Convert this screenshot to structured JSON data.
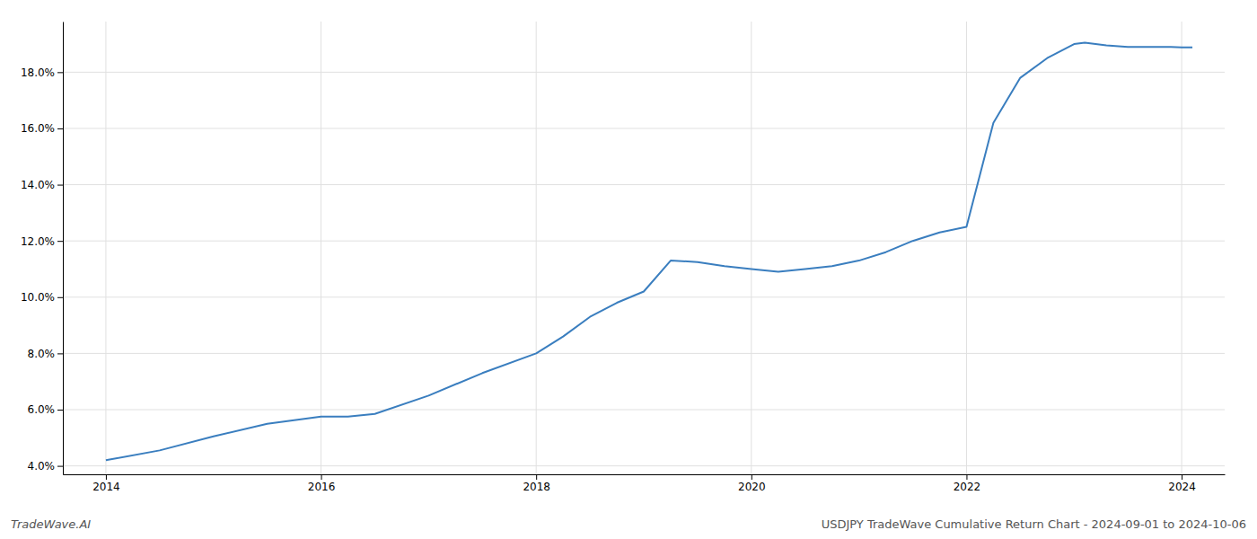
{
  "chart_data": {
    "type": "line",
    "x": [
      2014.0,
      2014.5,
      2015.0,
      2015.5,
      2016.0,
      2016.25,
      2016.5,
      2017.0,
      2017.5,
      2018.0,
      2018.25,
      2018.5,
      2018.75,
      2019.0,
      2019.25,
      2019.5,
      2019.75,
      2020.0,
      2020.25,
      2020.5,
      2020.75,
      2021.0,
      2021.25,
      2021.5,
      2021.75,
      2022.0,
      2022.25,
      2022.5,
      2022.75,
      2023.0,
      2023.1,
      2023.3,
      2023.5,
      2023.7,
      2023.9,
      2024.0,
      2024.1
    ],
    "values": [
      4.2,
      4.55,
      5.05,
      5.5,
      5.75,
      5.75,
      5.85,
      6.5,
      7.3,
      8.0,
      8.6,
      9.3,
      9.8,
      10.2,
      11.3,
      11.25,
      11.1,
      11.0,
      10.9,
      11.0,
      11.1,
      11.3,
      11.6,
      12.0,
      12.3,
      12.5,
      16.2,
      17.8,
      18.5,
      19.0,
      19.05,
      18.95,
      18.9,
      18.9,
      18.9,
      18.88,
      18.88
    ],
    "color": "#3a7ebf",
    "xlim": [
      2013.6,
      2024.4
    ],
    "xticks": [
      2014,
      2016,
      2018,
      2020,
      2022,
      2024
    ],
    "ylim": [
      3.7,
      19.8
    ],
    "yticks": [
      {
        "value": 4.0,
        "label": "4.0%"
      },
      {
        "value": 6.0,
        "label": "6.0%"
      },
      {
        "value": 8.0,
        "label": "8.0%"
      },
      {
        "value": 10.0,
        "label": "10.0%"
      },
      {
        "value": 12.0,
        "label": "12.0%"
      },
      {
        "value": 14.0,
        "label": "14.0%"
      },
      {
        "value": 16.0,
        "label": "16.0%"
      },
      {
        "value": 18.0,
        "label": "18.0%"
      }
    ],
    "grid": true,
    "annotations": [
      "TradeWave.AI",
      "USDJPY TradeWave Cumulative Return Chart - 2024-09-01 to 2024-10-06"
    ]
  }
}
